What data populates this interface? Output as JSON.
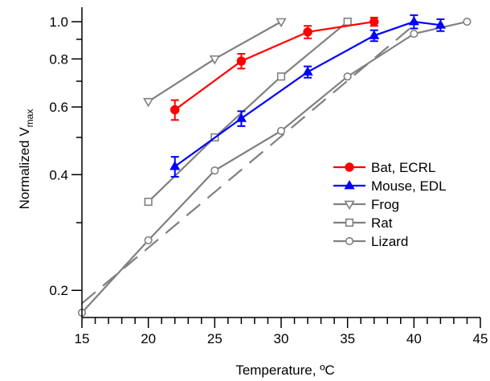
{
  "chart_data": {
    "type": "line",
    "title": "",
    "xlabel": "Temperature, ºC",
    "ylabel_main": "Normalized V",
    "ylabel_sub": "max",
    "x_scale": "linear",
    "y_scale": "log",
    "xlim": [
      15,
      45
    ],
    "ylim": [
      0.17,
      1.08
    ],
    "x_ticks": [
      15,
      20,
      25,
      30,
      35,
      40,
      45
    ],
    "x_tick_labels": [
      "15",
      "20",
      "25",
      "30",
      "35",
      "40",
      "45"
    ],
    "y_ticks": [
      0.2,
      0.4,
      0.6,
      0.8,
      1.0
    ],
    "y_tick_labels": [
      "0.2",
      "0.4",
      "0.6",
      "0.8",
      "1.0"
    ],
    "grid": false,
    "legend_position": "bottom-right",
    "series": [
      {
        "name": "Bat, ECRL",
        "color": "#ff0000",
        "marker": "filled-circle",
        "x": [
          22,
          27,
          32,
          37
        ],
        "y": [
          0.59,
          0.79,
          0.94,
          1.0
        ],
        "err": [
          0.035,
          0.035,
          0.035,
          0.025
        ]
      },
      {
        "name": "Mouse, EDL",
        "color": "#0000ff",
        "marker": "filled-triangle-up",
        "x": [
          22,
          27,
          32,
          37,
          40,
          42
        ],
        "y": [
          0.42,
          0.56,
          0.74,
          0.92,
          1.0,
          0.98
        ],
        "err": [
          0.025,
          0.025,
          0.025,
          0.03,
          0.04,
          0.035
        ]
      },
      {
        "name": "Frog",
        "color": "#808080",
        "marker": "open-triangle-down",
        "x": [
          20,
          25,
          30
        ],
        "y": [
          0.62,
          0.8,
          1.0
        ]
      },
      {
        "name": "Rat",
        "color": "#808080",
        "marker": "open-square",
        "x": [
          20,
          25,
          30,
          35
        ],
        "y": [
          0.34,
          0.5,
          0.72,
          1.0
        ]
      },
      {
        "name": "Lizard",
        "color": "#808080",
        "marker": "open-circle",
        "x": [
          15,
          20,
          25,
          30,
          35,
          40,
          44
        ],
        "y": [
          0.175,
          0.27,
          0.41,
          0.52,
          0.72,
          0.93,
          1.0
        ]
      }
    ],
    "dashed_line": {
      "color": "#808080",
      "x": [
        15,
        40
      ],
      "y": [
        0.185,
        0.98
      ]
    }
  }
}
